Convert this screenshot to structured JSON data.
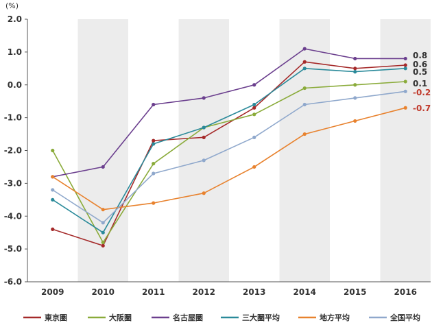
{
  "chart_data": {
    "type": "line",
    "unit_label": "(%)",
    "categories": [
      "2009",
      "2010",
      "2011",
      "2012",
      "2013",
      "2014",
      "2015",
      "2016"
    ],
    "ylim": [
      -6.0,
      2.0
    ],
    "yticks": [
      "2.0",
      "1.0",
      "0.0",
      "-1.0",
      "-2.0",
      "-3.0",
      "-4.0",
      "-5.0",
      "-6.0"
    ],
    "ytick_values": [
      2,
      1,
      0,
      -1,
      -2,
      -3,
      -4,
      -5,
      -6
    ],
    "grid": false,
    "alternating_bands": true,
    "band_color": "#ececec",
    "legend_position": "bottom",
    "series": [
      {
        "name": "東京圏",
        "color": "#a52a2a",
        "values": [
          -4.4,
          -4.9,
          -1.7,
          -1.6,
          -0.7,
          0.7,
          0.5,
          0.6
        ]
      },
      {
        "name": "大阪圏",
        "color": "#8aab3a",
        "values": [
          -2.0,
          -4.8,
          -2.4,
          -1.3,
          -0.9,
          -0.1,
          0.0,
          0.1
        ]
      },
      {
        "name": "名古屋圏",
        "color": "#6b3f8e",
        "values": [
          -2.8,
          -2.5,
          -0.6,
          -0.4,
          0.0,
          1.1,
          0.8,
          0.8
        ]
      },
      {
        "name": "三大圏平均",
        "color": "#2a8a9a",
        "values": [
          -3.5,
          -4.5,
          -1.8,
          -1.3,
          -0.6,
          0.5,
          0.4,
          0.5
        ]
      },
      {
        "name": "地方平均",
        "color": "#e8822e",
        "values": [
          -2.8,
          -3.8,
          -3.6,
          -3.3,
          -2.5,
          -1.5,
          -1.1,
          -0.7
        ]
      },
      {
        "name": "全国平均",
        "color": "#8fa8cc",
        "values": [
          -3.2,
          -4.2,
          -2.7,
          -2.3,
          -1.6,
          -0.6,
          -0.4,
          -0.2
        ]
      }
    ],
    "end_labels": [
      {
        "text": "0.8",
        "color": "#333333"
      },
      {
        "text": "0.6",
        "color": "#333333"
      },
      {
        "text": "0.5",
        "color": "#333333"
      },
      {
        "text": "0.1",
        "color": "#333333"
      },
      {
        "text": "-0.2",
        "color": "#c0392b"
      },
      {
        "text": "-0.7",
        "color": "#c0392b"
      }
    ]
  }
}
